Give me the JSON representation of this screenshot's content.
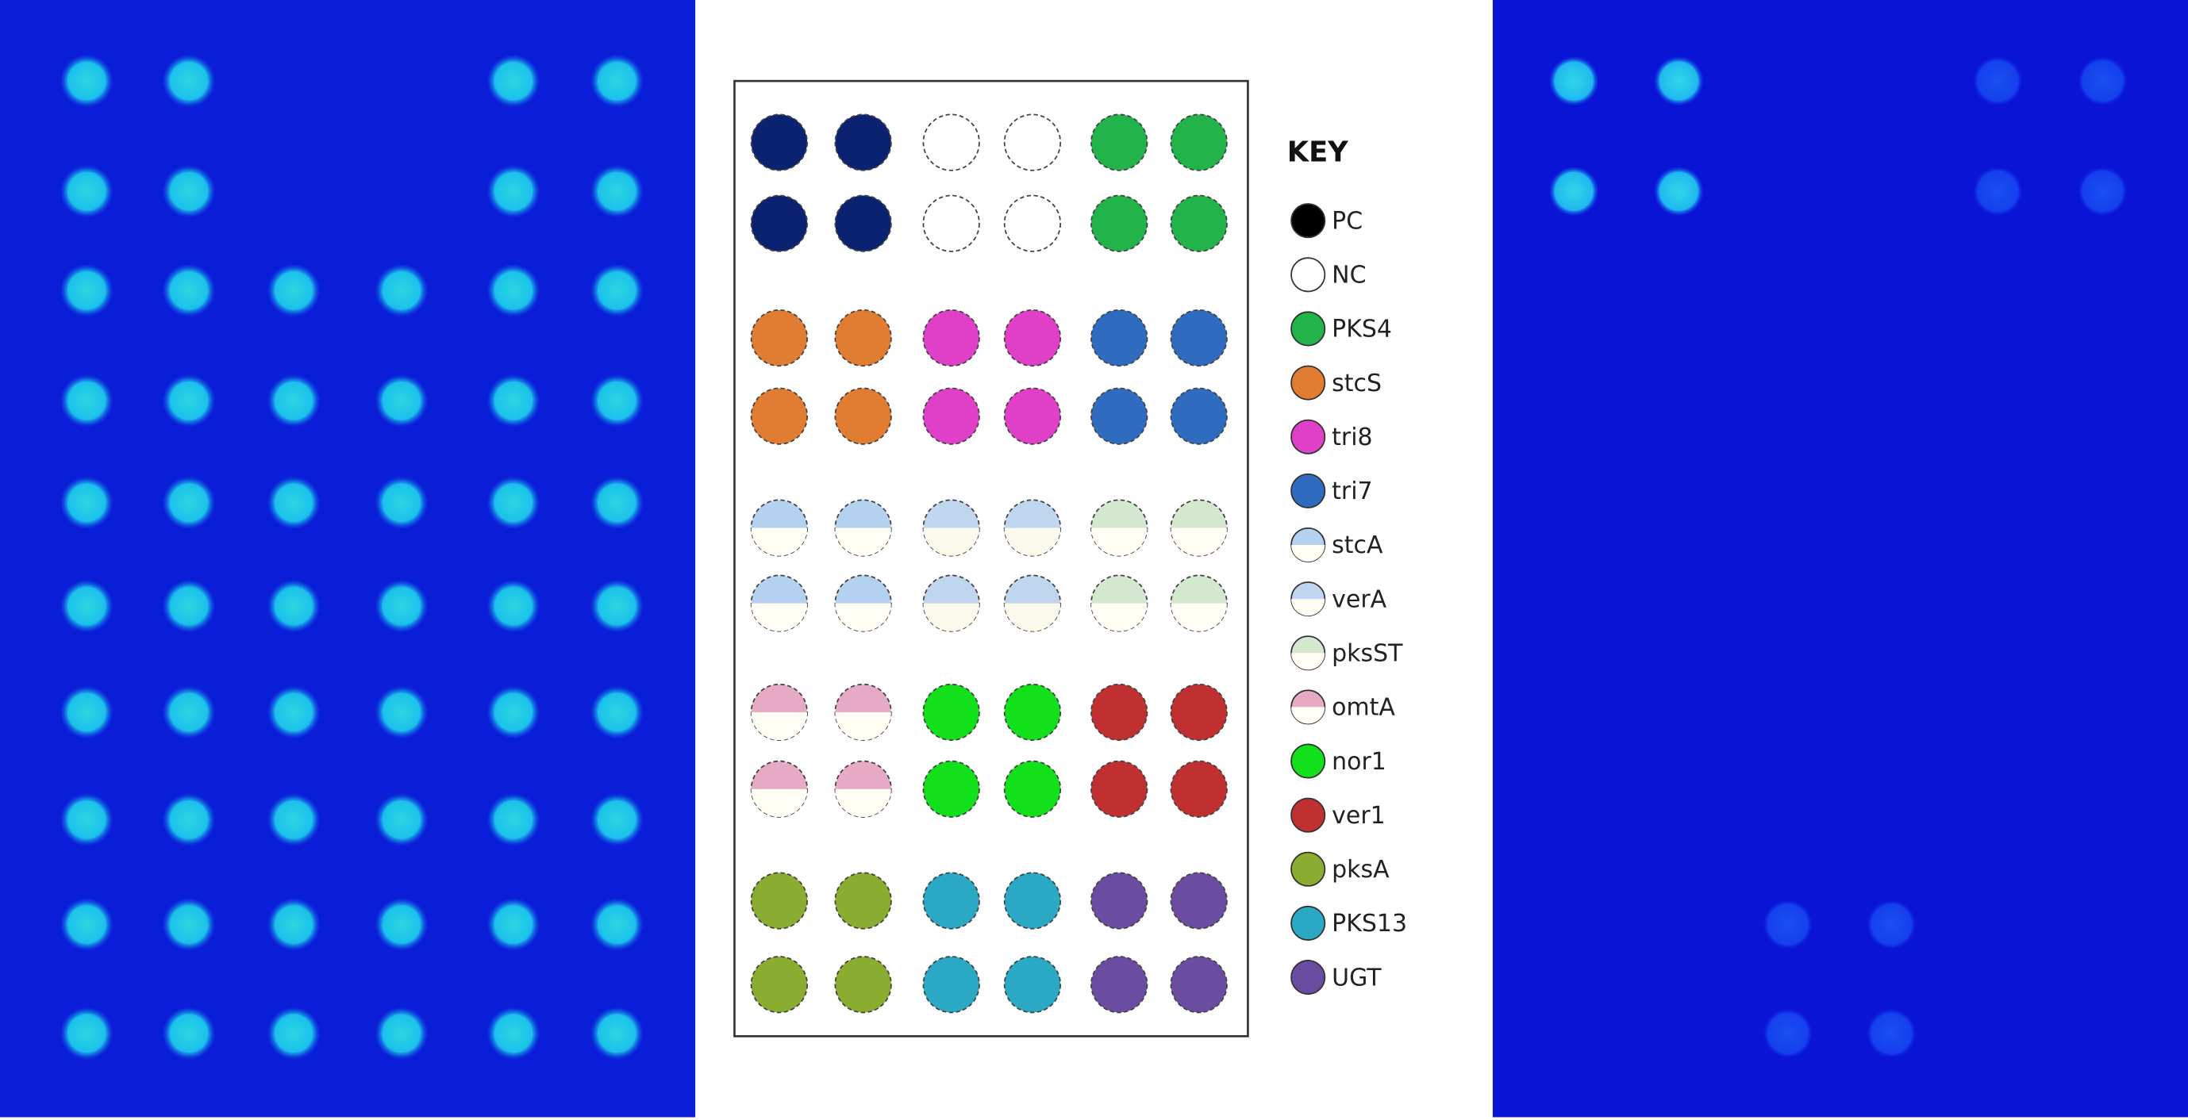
{
  "key": {
    "title": "KEY",
    "items": [
      {
        "label": "PC",
        "color": "#0b2270"
      },
      {
        "label": "NC",
        "color": "#ffffff"
      },
      {
        "label": "PKS4",
        "color": "#22b34a"
      },
      {
        "label": "stcS",
        "color": "#e07d32"
      },
      {
        "label": "tri8",
        "color": "#e040c8"
      },
      {
        "label": "tri7",
        "color": "#2f6cc0"
      },
      {
        "label": "stcA",
        "color": "#b4d2f0"
      },
      {
        "label": "verA",
        "color": "#c0d6ee"
      },
      {
        "label": "pksST",
        "color": "#d4e8d0"
      },
      {
        "label": "omtA",
        "color": "#e6aac4"
      },
      {
        "label": "nor1",
        "color": "#12e01a"
      },
      {
        "label": "ver1",
        "color": "#c03030"
      },
      {
        "label": "pksA",
        "color": "#8aac30"
      },
      {
        "label": "PKS13",
        "color": "#2aa8c4"
      },
      {
        "label": "UGT",
        "color": "#6a4ca0"
      }
    ]
  }
}
